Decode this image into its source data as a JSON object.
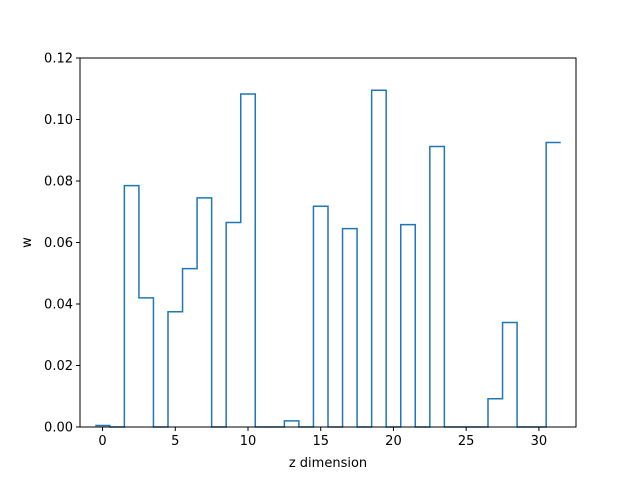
{
  "chart_data": {
    "type": "line",
    "style": "step",
    "xlabel": "z dimension",
    "ylabel": "w",
    "xlim": [
      -1.55,
      32.55
    ],
    "ylim": [
      0,
      0.12
    ],
    "x": [
      0,
      1,
      2,
      3,
      4,
      5,
      6,
      7,
      8,
      9,
      10,
      11,
      12,
      13,
      14,
      15,
      16,
      17,
      18,
      19,
      20,
      21,
      22,
      23,
      24,
      25,
      26,
      27,
      28,
      29,
      30,
      31
    ],
    "values": [
      0.0005,
      0,
      0.0785,
      0.042,
      0,
      0.0375,
      0.0515,
      0.0745,
      0,
      0.0665,
      0.1083,
      0,
      0,
      0.002,
      0,
      0.0718,
      0,
      0.0645,
      0,
      0.1095,
      0,
      0.0658,
      0,
      0.0912,
      0,
      0,
      0,
      0.0092,
      0.034,
      0,
      0,
      0.0925
    ],
    "xticks": [
      0,
      5,
      10,
      15,
      20,
      25,
      30
    ],
    "xtick_labels": [
      "0",
      "5",
      "10",
      "15",
      "20",
      "25",
      "30"
    ],
    "yticks": [
      0,
      0.02,
      0.04,
      0.06,
      0.08,
      0.1,
      0.12
    ],
    "ytick_labels": [
      "0.00",
      "0.02",
      "0.04",
      "0.06",
      "0.08",
      "0.10",
      "0.12"
    ],
    "line_color": "#1f77b4",
    "grid": false
  }
}
